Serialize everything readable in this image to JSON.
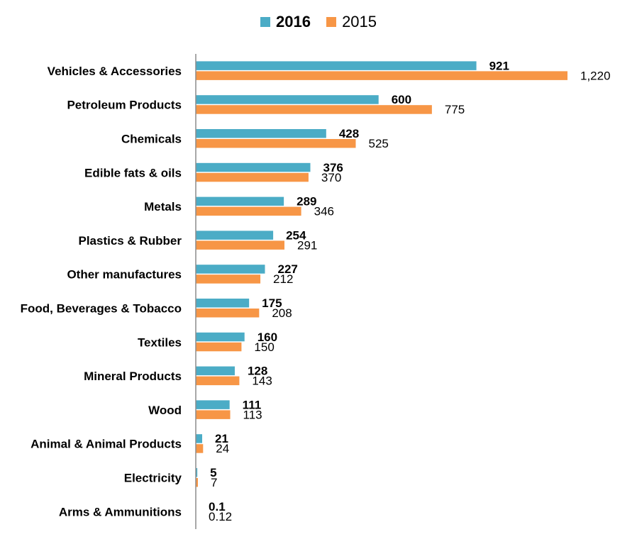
{
  "chart_data": {
    "type": "bar",
    "orientation": "horizontal",
    "categories": [
      "Vehicles & Accessories",
      "Petroleum Products",
      "Chemicals",
      "Edible fats & oils",
      "Metals",
      "Plastics & Rubber",
      "Other manufactures",
      "Food, Beverages & Tobacco",
      "Textiles",
      "Mineral Products",
      "Wood",
      "Animal & Animal Products",
      "Electricity",
      "Arms & Ammunitions"
    ],
    "series": [
      {
        "name": "2016",
        "color": "#4BACC6",
        "values": [
          921,
          600,
          428,
          376,
          289,
          254,
          227,
          175,
          160,
          128,
          111,
          21,
          5,
          0.1
        ],
        "labels": [
          "921",
          "600",
          "428",
          "376",
          "289",
          "254",
          "227",
          "175",
          "160",
          "128",
          "111",
          "21",
          "5",
          "0.1"
        ]
      },
      {
        "name": "2015",
        "color": "#F79646",
        "values": [
          1220,
          775,
          525,
          370,
          346,
          291,
          212,
          208,
          150,
          143,
          113,
          24,
          7,
          0.12
        ],
        "labels": [
          "1,220",
          "775",
          "525",
          "370",
          "346",
          "291",
          "212",
          "208",
          "150",
          "143",
          "113",
          "24",
          "7",
          "0.12"
        ]
      }
    ],
    "legend_position": "top",
    "grid": false
  }
}
